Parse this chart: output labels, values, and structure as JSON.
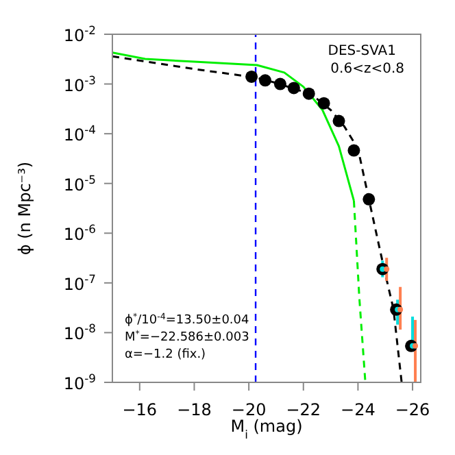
{
  "chart_data": {
    "type": "scatter",
    "xlabel": "M$_{i}$ (mag)",
    "ylabel": "ϕ (n Mpc⁻³)",
    "xlim": [
      -15,
      -26.3
    ],
    "xticks": [
      {
        "value": -16,
        "label": "−16"
      },
      {
        "value": -18,
        "label": "−18"
      },
      {
        "value": -20,
        "label": "−20"
      },
      {
        "value": -22,
        "label": "−22"
      },
      {
        "value": -24,
        "label": "−24"
      },
      {
        "value": -26,
        "label": "−26"
      }
    ],
    "ylim": [
      1e-09,
      0.01
    ],
    "yticks": [
      {
        "value": 1e-09,
        "label": "10$^{-9}$"
      },
      {
        "value": 1e-08,
        "label": "10$^{-8}$"
      },
      {
        "value": 1e-07,
        "label": "10$^{-7}$"
      },
      {
        "value": 1e-06,
        "label": "10$^{-6}$"
      },
      {
        "value": 1e-05,
        "label": "10$^{-5}$"
      },
      {
        "value": 0.0001,
        "label": "10$^{-4}$"
      },
      {
        "value": 0.001,
        "label": "10$^{-3}$"
      },
      {
        "value": 0.01,
        "label": "10$^{-2}$"
      }
    ],
    "log": "y",
    "ref_lines": [
      {
        "axis": "x",
        "value": -20.25,
        "color": "#0000ff",
        "line_style": "dashed"
      }
    ],
    "annotations": [
      "DES-SVA1",
      "0.6<z<0.8",
      "ϕ$^{*}$/10$^{-4}$=13.50±0.04",
      "M$^{*}$=−22.586±0.003",
      "α=−1.2 (fix.)"
    ],
    "series": [
      {
        "type": "line",
        "color": "#00ee00",
        "line_style": "solid",
        "marker": "none",
        "x": [
          -15,
          -16.2,
          -18,
          -20.3,
          -21.3,
          -22,
          -22.7,
          -23.3,
          -23.85
        ],
        "values": [
          0.0043,
          0.0032,
          0.0028,
          0.0024,
          0.0017,
          0.00088,
          0.0003,
          5.6e-05,
          4.5e-06
        ]
      },
      {
        "type": "line",
        "color": "#00ee00",
        "line_style": "dashed",
        "marker": "none",
        "x": [
          -23.85,
          -24.05,
          -24.27
        ],
        "values": [
          4.5e-06,
          5e-08,
          1e-09
        ]
      },
      {
        "type": "line",
        "color": "#000000",
        "line_style": "dashed",
        "marker": "none",
        "x": [
          -15,
          -18,
          -20.25,
          -21,
          -22,
          -22.5,
          -23,
          -23.5,
          -24,
          -24.4,
          -24.95,
          -25.3,
          -25.6
        ],
        "values": [
          0.0036,
          0.002,
          0.00135,
          0.00105,
          0.0007,
          0.0005,
          0.0003,
          0.00014,
          5e-05,
          4.8e-06,
          2e-07,
          3e-08,
          1e-09
        ]
      },
      {
        "color": "#000000",
        "marker": "circle",
        "x": [
          -20.1,
          -20.6,
          -21.15,
          -21.65,
          -22.2,
          -22.75,
          -23.3,
          -23.85,
          -24.4,
          -24.9,
          -25.4,
          -25.95
        ],
        "values": [
          0.0014,
          0.00118,
          0.001,
          0.00083,
          0.00064,
          0.00041,
          0.00018,
          4.6e-05,
          4.8e-06,
          1.9e-07,
          2.9e-08,
          5.4e-09
        ]
      },
      {
        "color": "#00dddd",
        "marker": "circle",
        "x": [
          -24.9,
          -25.45,
          -26.0
        ],
        "values": [
          1.9e-07,
          2.9e-08,
          5.4e-09
        ],
        "errors": [
          [
            1.3e-07,
            2.8e-07
          ],
          [
            1.45e-08,
            4.6e-08
          ],
          [
            5.7e-09,
            2.1e-08
          ]
        ]
      },
      {
        "color": "#ff7f50",
        "marker": "circle",
        "x": [
          -25.05,
          -25.55,
          -26.1
        ],
        "values": [
          1.9e-07,
          2.9e-08,
          5.4e-09
        ],
        "errors": [
          [
            1.1e-07,
            3.2e-07
          ],
          [
            1.15e-08,
            8.3e-08
          ],
          [
            1e-09,
            1.8e-08
          ]
        ]
      }
    ]
  }
}
